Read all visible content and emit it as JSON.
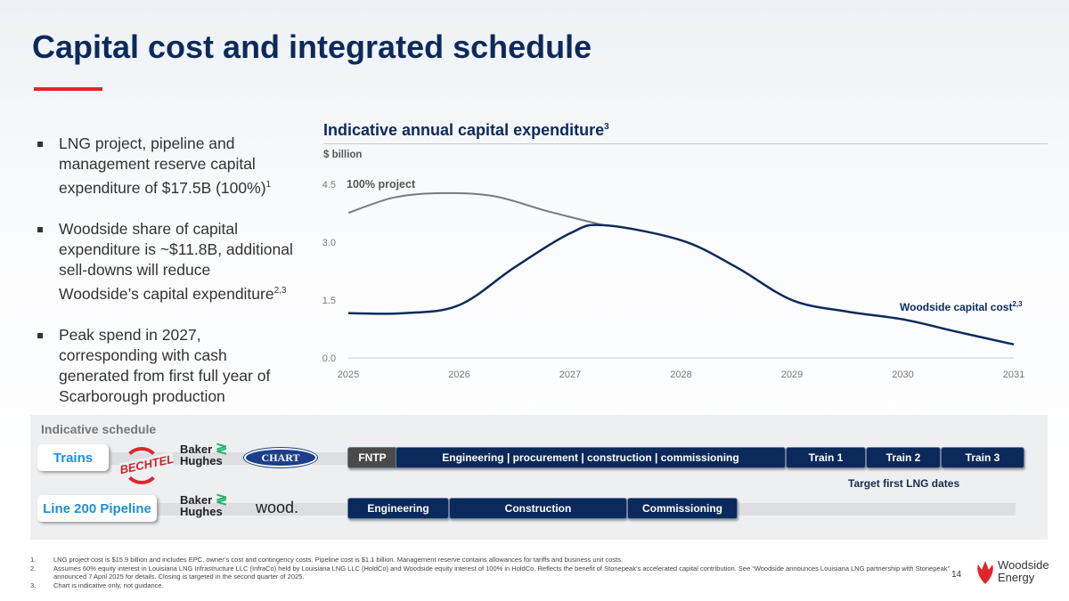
{
  "title": "Capital cost and integrated schedule",
  "bullets": [
    {
      "text": "LNG project, pipeline and management reserve capital expenditure of $17.5B (100%)",
      "sup": "1"
    },
    {
      "text": "Woodside share of capital expenditure is ~$11.8B, additional sell-downs will reduce Woodside’s capital expenditure",
      "sup": "2,3"
    },
    {
      "text": "Peak spend in 2027, corresponding with cash generated from first full year of Scarborough production",
      "sup": ""
    }
  ],
  "chart_data": {
    "type": "line",
    "title": "Indicative annual capital expenditure",
    "title_sup": "3",
    "ylabel": "$ billion",
    "ylim": [
      0,
      4.5
    ],
    "yticks": [
      "0.0",
      "1.5",
      "3.0",
      "4.5"
    ],
    "xlim": [
      2025,
      2031
    ],
    "xticks": [
      "2025",
      "2026",
      "2027",
      "2028",
      "2029",
      "2030",
      "2031"
    ],
    "grid": false,
    "series": [
      {
        "name": "100% project",
        "color": "#7a7a7a",
        "x": [
          2025,
          2025.4,
          2025.8,
          2026.3,
          2026.8,
          2027.3
        ],
        "y": [
          3.76,
          4.15,
          4.27,
          4.2,
          3.8,
          3.44
        ]
      },
      {
        "name": "Woodside capital cost",
        "name_sup": "2,3",
        "color": "#0b2a5b",
        "x": [
          2025,
          2025.5,
          2026,
          2026.5,
          2027,
          2027.3,
          2028,
          2028.5,
          2029,
          2029.5,
          2030,
          2030.5,
          2031
        ],
        "y": [
          1.16,
          1.16,
          1.37,
          2.35,
          3.23,
          3.44,
          3.05,
          2.35,
          1.5,
          1.2,
          1.0,
          0.67,
          0.35
        ]
      }
    ]
  },
  "schedule": {
    "title": "Indicative schedule",
    "trains": {
      "label": "Trains",
      "logos": [
        "BECHTEL",
        "Baker Hughes",
        "CHART"
      ],
      "bars": [
        "FNTP",
        "Engineering | procurement | construction | commissioning",
        "Train 1",
        "Train 2",
        "Train 3"
      ],
      "note": "Target first LNG dates"
    },
    "pipeline": {
      "label": "Line 200 Pipeline",
      "logos": [
        "Baker Hughes",
        "wood."
      ],
      "bars": [
        "Engineering",
        "Construction",
        "Commissioning"
      ]
    },
    "colors": {
      "bar": "#0b2a5b",
      "fntp": "#4a4a4a",
      "accent": "#1d8fd6",
      "logo_green": "#1fb36b"
    }
  },
  "footnotes": [
    {
      "n": "1.",
      "text": "LNG project cost is $15.9 billion and includes EPC, owner’s cost and contingency costs. Pipeline cost is $1.1 billion. Management reserve contains allowances for tariffs and business unit costs."
    },
    {
      "n": "2.",
      "text": "Assumes 60% equity interest in Louisiana LNG Infrastructure LLC (InfraCo) held by Louisiana LNG LLC (HoldCo) and Woodside equity interest of 100% in HoldCo. Reflects the benefit of Stonepeak’s accelerated capital contribution. See “Woodside announces Louisiana LNG partnership with Stonepeak” announced 7 April 2025 for details. Closing is targeted in the second quarter of 2025."
    },
    {
      "n": "3.",
      "text": "Chart is indicative only, not guidance."
    }
  ],
  "page_number": "14",
  "brand": {
    "line1": "Woodside",
    "line2": "Energy",
    "color": "#e0242c"
  }
}
